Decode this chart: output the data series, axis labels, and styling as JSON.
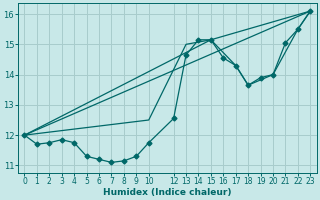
{
  "xlabel": "Humidex (Indice chaleur)",
  "bg_color": "#c8e8e8",
  "grid_color": "#a8cccc",
  "line_color": "#006868",
  "xlim": [
    -0.5,
    23.5
  ],
  "ylim": [
    10.75,
    16.35
  ],
  "yticks": [
    11,
    12,
    13,
    14,
    15,
    16
  ],
  "xticks": [
    0,
    1,
    2,
    3,
    4,
    5,
    6,
    7,
    8,
    9,
    10,
    12,
    13,
    14,
    15,
    16,
    17,
    18,
    19,
    20,
    21,
    22,
    23
  ],
  "xtick_labels": [
    "0",
    "1",
    "2",
    "3",
    "4",
    "5",
    "6",
    "7",
    "8",
    "9",
    "10",
    "12",
    "13",
    "14",
    "15",
    "16",
    "17",
    "18",
    "19",
    "20",
    "21",
    "22",
    "23"
  ],
  "line1_x": [
    0,
    1,
    2,
    3,
    4,
    5,
    6,
    7,
    8,
    9,
    10,
    12,
    13,
    14,
    15,
    16,
    17,
    18,
    19,
    20,
    21,
    22,
    23
  ],
  "line1_y": [
    12.0,
    11.7,
    11.75,
    11.85,
    11.75,
    11.3,
    11.2,
    11.1,
    11.15,
    11.3,
    11.75,
    12.55,
    14.65,
    15.15,
    15.15,
    14.55,
    14.3,
    13.65,
    13.9,
    14.0,
    15.05,
    15.5,
    16.1
  ],
  "line2_x": [
    0,
    10,
    13,
    15,
    17,
    18,
    20,
    22,
    23
  ],
  "line2_y": [
    12.0,
    12.5,
    15.0,
    15.15,
    14.3,
    13.65,
    14.0,
    15.5,
    16.1
  ],
  "line3_x": [
    0,
    23
  ],
  "line3_y": [
    12.0,
    16.1
  ],
  "line4_x": [
    0,
    15,
    23
  ],
  "line4_y": [
    12.0,
    15.15,
    16.1
  ]
}
